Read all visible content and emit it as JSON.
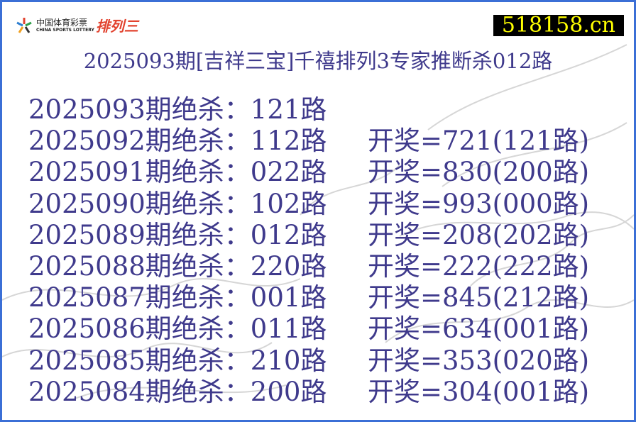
{
  "logo": {
    "cn": "中国体育彩票",
    "en": "CHINA SPORTS LOTTERY",
    "product": "排列三"
  },
  "site": "518158.cn",
  "title": "2025093期[吉祥三宝]千禧排列3专家推断杀012路",
  "rows": [
    {
      "kill": "2025093期绝杀：121路",
      "result": ""
    },
    {
      "kill": "2025092期绝杀：112路",
      "result": "开奖=721(121路)"
    },
    {
      "kill": "2025091期绝杀：022路",
      "result": "开奖=830(200路)"
    },
    {
      "kill": "2025090期绝杀：102路",
      "result": "开奖=993(000路)"
    },
    {
      "kill": "2025089期绝杀：012路",
      "result": "开奖=208(202路)"
    },
    {
      "kill": "2025088期绝杀：220路",
      "result": "开奖=222(222路)"
    },
    {
      "kill": "2025087期绝杀：001路",
      "result": "开奖=845(212路)"
    },
    {
      "kill": "2025086期绝杀：011路",
      "result": "开奖=634(001路)"
    },
    {
      "kill": "2025085期绝杀：210路",
      "result": "开奖=353(020路)"
    },
    {
      "kill": "2025084期绝杀：200路",
      "result": "开奖=304(001路)"
    }
  ]
}
